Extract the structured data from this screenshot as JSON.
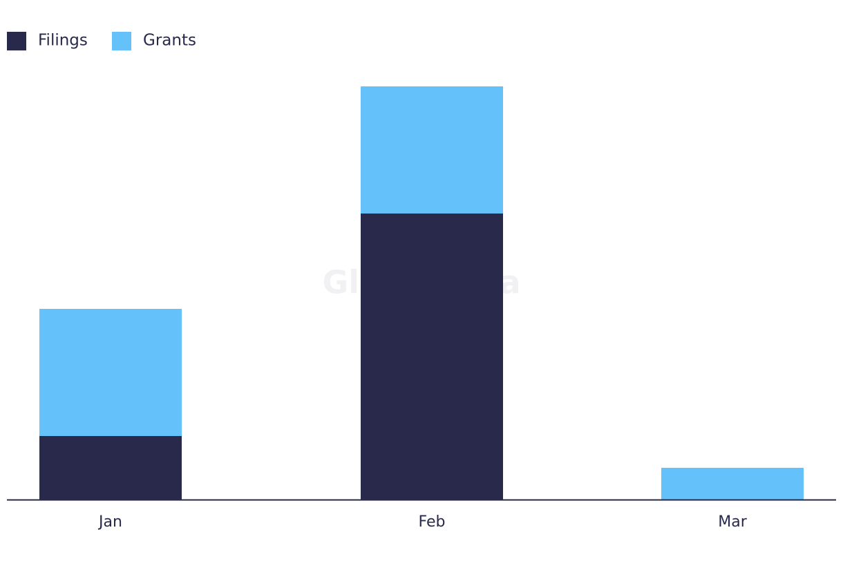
{
  "chart_data": {
    "type": "stacked_bar",
    "categories": [
      "Jan",
      "Feb",
      "Mar"
    ],
    "series": [
      {
        "name": "Filings",
        "color": "#28294b",
        "values": [
          2,
          9,
          0
        ]
      },
      {
        "name": "Grants",
        "color": "#64c1f9",
        "values": [
          4,
          4,
          1
        ]
      }
    ],
    "ylim": [
      0,
      13
    ],
    "watermark": "GlobalData"
  }
}
